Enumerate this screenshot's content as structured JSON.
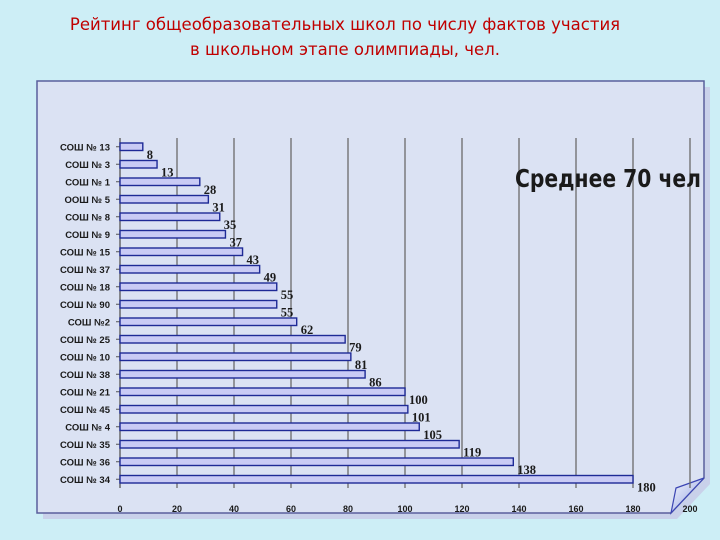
{
  "slide": {
    "title_line1": "Рейтинг общеобразовательных школ по числу фактов участия",
    "title_line2": "в  школьном этапе олимпиады, чел."
  },
  "colors": {
    "background": "#cdeef6",
    "title": "#c00000",
    "panel": "#dbe2f3",
    "bar_fill": "#c9cbf5",
    "bar_stroke": "#1e2a96",
    "text": "#1a1a1a"
  },
  "chart_data": {
    "type": "bar",
    "orientation": "horizontal",
    "annotation": "Среднее 70 чел",
    "categories": [
      "СОШ № 13",
      "СОШ № 3",
      "СОШ № 1",
      "ООШ № 5",
      "СОШ № 8",
      "СОШ № 9",
      "СОШ № 15",
      "СОШ № 37",
      "СОШ № 18",
      "СОШ № 90",
      "СОШ №2",
      "СОШ № 25",
      "СОШ № 10",
      "СОШ № 38",
      "СОШ № 21",
      "СОШ № 45",
      "СОШ № 4",
      "СОШ № 35",
      "СОШ № 36",
      "СОШ № 34"
    ],
    "values": [
      8,
      13,
      28,
      31,
      35,
      37,
      43,
      49,
      55,
      55,
      62,
      79,
      81,
      86,
      100,
      101,
      105,
      119,
      138,
      180
    ],
    "xlim": [
      0,
      200
    ],
    "xticks": [
      0,
      20,
      40,
      60,
      80,
      100,
      120,
      140,
      160,
      180,
      200
    ],
    "grid": true,
    "data_labels": true,
    "legend": "none"
  }
}
